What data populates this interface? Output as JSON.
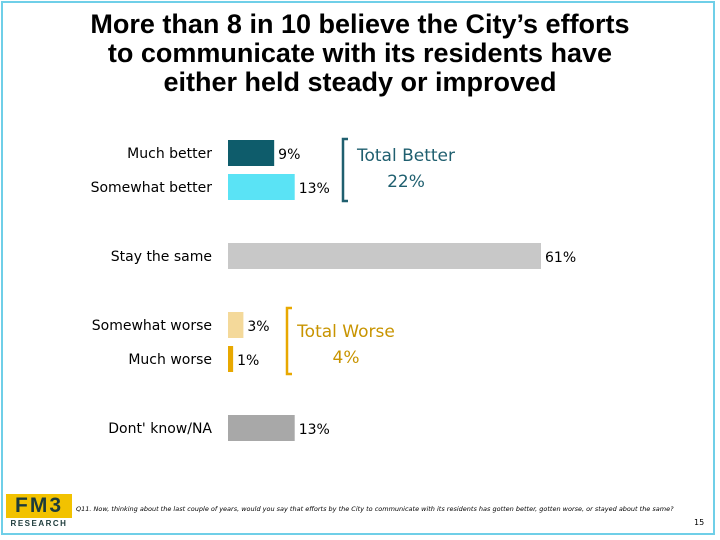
{
  "title": {
    "line1": "More than 8 in 10 believe the City’s efforts",
    "line2": "to communicate with its residents have",
    "line3": "either held steady or improved"
  },
  "chart_data": {
    "type": "bar",
    "orientation": "horizontal",
    "categories": [
      "Much better",
      "Somewhat better",
      "Stay the same",
      "Somewhat worse",
      "Much worse",
      "Dont' know/NA"
    ],
    "values": [
      9,
      13,
      61,
      3,
      1,
      13
    ],
    "value_labels": [
      "9%",
      "13%",
      "61%",
      "3%",
      "1%",
      "13%"
    ],
    "colors": [
      "#0e5c6b",
      "#5ae3f5",
      "#c8c8c8",
      "#f4d99a",
      "#e8a800",
      "#a8a8a8"
    ],
    "value_max": 61,
    "annotations": [
      {
        "label": "Total Better",
        "value": "22%",
        "color": "#1f5f6f",
        "bracket_color": "#1f5f6f",
        "spans": [
          "Much better",
          "Somewhat better"
        ]
      },
      {
        "label": "Total Worse",
        "value": "4%",
        "color": "#c89400",
        "bracket_color": "#e8a800",
        "spans": [
          "Somewhat worse",
          "Much worse"
        ]
      }
    ]
  },
  "footer": {
    "question": "Q11. Now, thinking about the last couple of years, would you say that efforts by the City to communicate with its residents has gotten better, gotten worse, or stayed about the same?",
    "page_number": "15",
    "logo_main": "FM3",
    "logo_sub": "RESEARCH"
  }
}
